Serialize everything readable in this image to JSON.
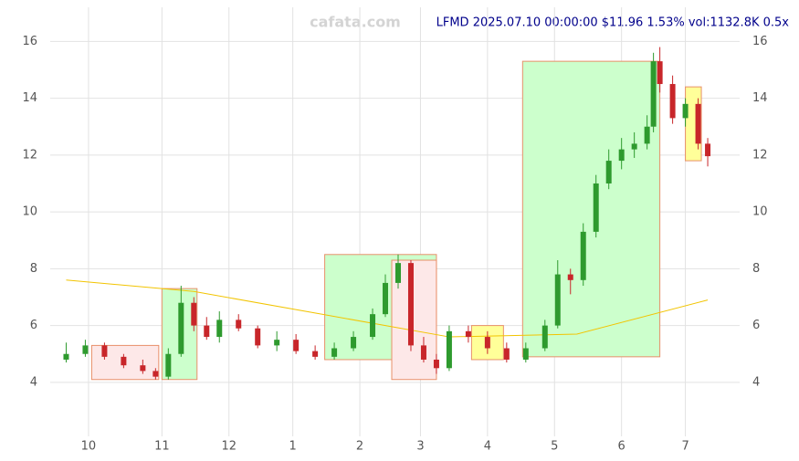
{
  "chart_data": {
    "type": "candlestick",
    "watermark": "cafata.com",
    "title": "LFMD 2025.07.10 00:00:00 $11.96 1.53% vol:1132.8K 0.5x",
    "x": [
      0,
      6,
      12,
      18,
      24,
      28,
      32,
      36,
      40,
      44,
      48,
      54,
      60,
      66,
      72,
      78,
      84,
      90,
      96,
      100,
      104,
      108,
      112,
      116,
      120,
      126,
      132,
      138,
      144,
      150,
      154,
      158,
      162,
      166,
      170,
      174,
      178,
      182,
      184,
      186,
      190,
      194,
      198,
      201
    ],
    "open": [
      4.8,
      5.0,
      5.3,
      4.9,
      4.6,
      4.4,
      4.2,
      5.0,
      6.8,
      6.0,
      5.6,
      6.2,
      5.9,
      5.3,
      5.5,
      5.1,
      4.9,
      5.2,
      5.6,
      6.4,
      7.5,
      8.2,
      5.3,
      4.8,
      4.5,
      5.8,
      5.6,
      5.2,
      4.8,
      5.2,
      6.0,
      7.8,
      7.6,
      9.3,
      11.0,
      11.8,
      12.2,
      12.4,
      13.0,
      15.3,
      14.5,
      13.3,
      13.8,
      12.4
    ],
    "high": [
      5.4,
      5.5,
      5.4,
      5.0,
      4.8,
      4.5,
      5.2,
      7.4,
      7.0,
      6.3,
      6.5,
      6.4,
      6.0,
      5.8,
      5.7,
      5.3,
      5.4,
      5.8,
      6.6,
      7.8,
      8.5,
      8.3,
      5.6,
      5.0,
      6.0,
      6.0,
      5.8,
      5.4,
      5.4,
      6.2,
      8.3,
      8.0,
      9.6,
      11.3,
      12.2,
      12.6,
      12.8,
      13.4,
      15.6,
      15.8,
      14.8,
      14.0,
      14.0,
      12.6
    ],
    "low": [
      4.7,
      4.9,
      4.8,
      4.5,
      4.3,
      4.1,
      4.1,
      4.9,
      5.8,
      5.5,
      5.4,
      5.8,
      5.2,
      5.1,
      5.0,
      4.8,
      4.8,
      5.1,
      5.5,
      6.3,
      7.3,
      5.1,
      4.7,
      4.3,
      4.4,
      5.4,
      5.0,
      4.7,
      4.7,
      5.1,
      5.9,
      7.1,
      7.4,
      9.1,
      10.8,
      11.5,
      11.9,
      12.2,
      12.8,
      14.2,
      13.1,
      13.0,
      12.2,
      11.6
    ],
    "close": [
      5.0,
      5.3,
      4.9,
      4.6,
      4.4,
      4.2,
      5.0,
      6.8,
      6.0,
      5.6,
      6.2,
      5.9,
      5.3,
      5.5,
      5.1,
      4.9,
      5.2,
      5.6,
      6.4,
      7.5,
      8.2,
      5.3,
      4.8,
      4.5,
      5.8,
      5.6,
      5.2,
      4.8,
      5.2,
      6.0,
      7.8,
      7.6,
      9.3,
      11.0,
      11.8,
      12.2,
      12.4,
      13.0,
      15.3,
      14.5,
      13.3,
      13.8,
      12.4,
      11.96
    ],
    "up_color": "#2e9a2e",
    "down_color": "#c8262a",
    "ma": {
      "color": "#f2c400",
      "x": [
        0,
        40,
        80,
        120,
        160,
        201
      ],
      "values": [
        7.6,
        7.2,
        6.4,
        5.6,
        5.7,
        6.9
      ]
    },
    "zones": [
      {
        "x0": 8,
        "x1": 29,
        "y0": 4.1,
        "y1": 5.3,
        "color": "#fde8e8"
      },
      {
        "x0": 30,
        "x1": 41,
        "y0": 4.1,
        "y1": 7.3,
        "color": "#ccffcc"
      },
      {
        "x0": 81,
        "x1": 116,
        "y0": 4.8,
        "y1": 8.5,
        "color": "#ccffcc"
      },
      {
        "x0": 102,
        "x1": 116,
        "y0": 4.1,
        "y1": 8.3,
        "color": "#fde8e8"
      },
      {
        "x0": 127,
        "x1": 137,
        "y0": 4.8,
        "y1": 6.0,
        "color": "#ffff99"
      },
      {
        "x0": 143,
        "x1": 186,
        "y0": 4.9,
        "y1": 15.3,
        "color": "#ccffcc"
      },
      {
        "x0": 194,
        "x1": 199,
        "y0": 11.8,
        "y1": 14.4,
        "color": "#ffff99"
      }
    ],
    "xlim": [
      -5,
      211
    ],
    "xticks": [
      {
        "value": 7,
        "label": "10"
      },
      {
        "value": 30,
        "label": "11"
      },
      {
        "value": 51,
        "label": "12"
      },
      {
        "value": 71,
        "label": "1"
      },
      {
        "value": 92,
        "label": "2"
      },
      {
        "value": 111,
        "label": "3"
      },
      {
        "value": 132,
        "label": "4"
      },
      {
        "value": 153,
        "label": "5"
      },
      {
        "value": 174,
        "label": "6"
      },
      {
        "value": 194,
        "label": "7"
      }
    ],
    "ylim": [
      2.1,
      17.2
    ],
    "yticks": [
      4,
      6,
      8,
      10,
      12,
      14,
      16
    ],
    "grid": true
  }
}
